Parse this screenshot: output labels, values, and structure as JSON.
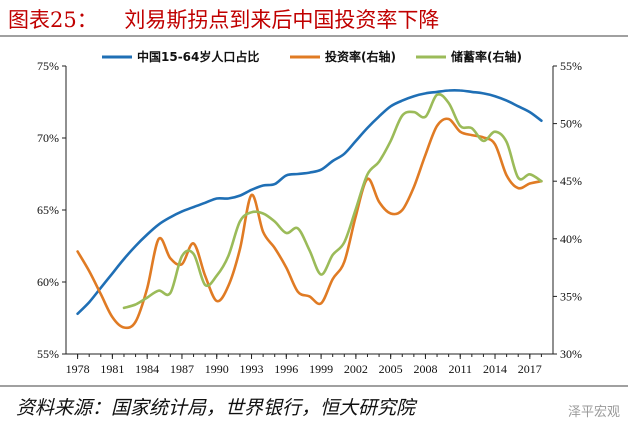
{
  "title": "图表25：    刘易斯拐点到来后中国投资率下降",
  "source": "资料来源：国家统计局，世界银行，恒大研究院",
  "watermark": "泽平宏观",
  "colors": {
    "title": "#c00000",
    "working_age": "#1f6fb5",
    "investment": "#e07b24",
    "savings": "#9bbb59"
  },
  "chart_data": {
    "type": "line",
    "title": "",
    "xlabel": "",
    "ylabel": "",
    "xlim": [
      1977,
      2019
    ],
    "x_ticks": [
      1978,
      1981,
      1984,
      1987,
      1990,
      1993,
      1996,
      1999,
      2002,
      2005,
      2008,
      2011,
      2014,
      2017
    ],
    "ylim_left": [
      55,
      75
    ],
    "yticks_left": [
      "55%",
      "60%",
      "65%",
      "70%",
      "75%"
    ],
    "ylim_right": [
      30,
      55
    ],
    "yticks_right": [
      "30%",
      "35%",
      "40%",
      "45%",
      "50%",
      "55%"
    ],
    "legend_position": "top",
    "series": [
      {
        "name": "中国15-64岁人口占比",
        "axis": "left",
        "color_key": "working_age",
        "x": [
          1978,
          1979,
          1980,
          1981,
          1982,
          1983,
          1984,
          1985,
          1986,
          1987,
          1988,
          1989,
          1990,
          1991,
          1992,
          1993,
          1994,
          1995,
          1996,
          1997,
          1998,
          1999,
          2000,
          2001,
          2002,
          2003,
          2004,
          2005,
          2006,
          2007,
          2008,
          2009,
          2010,
          2011,
          2012,
          2013,
          2014,
          2015,
          2016,
          2017,
          2018
        ],
        "values": [
          57.8,
          58.6,
          59.6,
          60.6,
          61.6,
          62.5,
          63.3,
          64.0,
          64.5,
          64.9,
          65.2,
          65.5,
          65.8,
          65.8,
          66.0,
          66.4,
          66.7,
          66.8,
          67.4,
          67.5,
          67.6,
          67.8,
          68.4,
          68.9,
          69.8,
          70.7,
          71.5,
          72.2,
          72.6,
          72.9,
          73.1,
          73.2,
          73.3,
          73.3,
          73.2,
          73.1,
          72.9,
          72.6,
          72.2,
          71.8,
          71.2
        ]
      },
      {
        "name": "投资率(右轴)",
        "axis": "right",
        "color_key": "investment",
        "x": [
          1978,
          1979,
          1980,
          1981,
          1982,
          1983,
          1984,
          1985,
          1986,
          1987,
          1988,
          1989,
          1990,
          1991,
          1992,
          1993,
          1994,
          1995,
          1996,
          1997,
          1998,
          1999,
          2000,
          2001,
          2002,
          2003,
          2004,
          2005,
          2006,
          2007,
          2008,
          2009,
          2010,
          2011,
          2012,
          2013,
          2014,
          2015,
          2016,
          2017,
          2018
        ],
        "values": [
          38.9,
          37.2,
          35.2,
          33.2,
          32.3,
          32.8,
          35.7,
          40.0,
          38.3,
          37.8,
          39.6,
          36.8,
          34.6,
          35.9,
          39.1,
          43.8,
          40.6,
          39.2,
          37.5,
          35.4,
          35.0,
          34.4,
          36.5,
          38.0,
          42.0,
          45.2,
          43.2,
          42.2,
          42.5,
          44.5,
          47.3,
          49.8,
          50.4,
          49.3,
          49.0,
          48.8,
          48.2,
          45.5,
          44.4,
          44.8,
          45.0
        ]
      },
      {
        "name": "储蓄率(右轴)",
        "axis": "right",
        "color_key": "savings",
        "x": [
          1982,
          1983,
          1984,
          1985,
          1986,
          1987,
          1988,
          1989,
          1990,
          1991,
          1992,
          1993,
          1994,
          1995,
          1996,
          1997,
          1998,
          1999,
          2000,
          2001,
          2002,
          2003,
          2004,
          2005,
          2006,
          2007,
          2008,
          2009,
          2010,
          2011,
          2012,
          2013,
          2014,
          2015,
          2016,
          2017,
          2018
        ],
        "values": [
          34.0,
          34.3,
          34.9,
          35.5,
          35.3,
          38.5,
          38.7,
          36.0,
          36.8,
          38.5,
          41.5,
          42.3,
          42.2,
          41.5,
          40.5,
          40.9,
          39.0,
          36.9,
          38.6,
          39.7,
          42.6,
          45.6,
          46.7,
          48.5,
          50.7,
          51.0,
          50.6,
          52.5,
          51.8,
          49.8,
          49.6,
          48.5,
          49.3,
          48.4,
          45.3,
          45.6,
          45.0
        ]
      }
    ]
  }
}
